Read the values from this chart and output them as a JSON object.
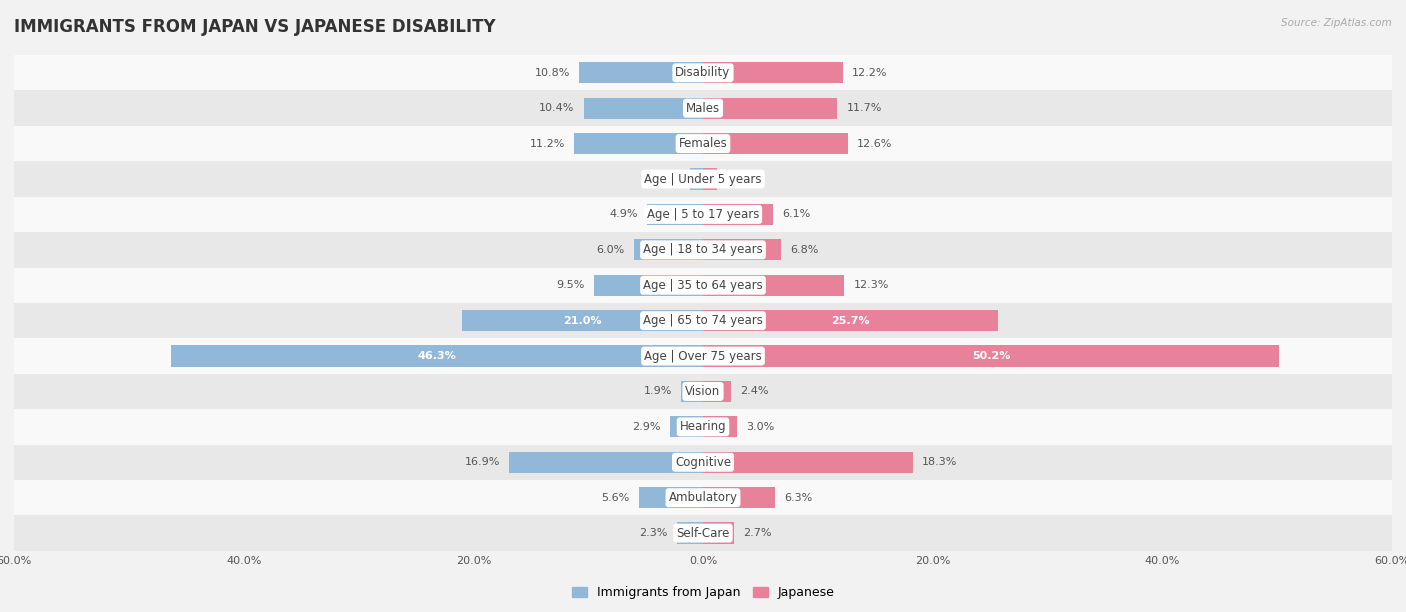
{
  "title": "IMMIGRANTS FROM JAPAN VS JAPANESE DISABILITY",
  "source": "Source: ZipAtlas.com",
  "categories": [
    "Disability",
    "Males",
    "Females",
    "Age | Under 5 years",
    "Age | 5 to 17 years",
    "Age | 18 to 34 years",
    "Age | 35 to 64 years",
    "Age | 65 to 74 years",
    "Age | Over 75 years",
    "Vision",
    "Hearing",
    "Cognitive",
    "Ambulatory",
    "Self-Care"
  ],
  "left_values": [
    10.8,
    10.4,
    11.2,
    1.1,
    4.9,
    6.0,
    9.5,
    21.0,
    46.3,
    1.9,
    2.9,
    16.9,
    5.6,
    2.3
  ],
  "right_values": [
    12.2,
    11.7,
    12.6,
    1.2,
    6.1,
    6.8,
    12.3,
    25.7,
    50.2,
    2.4,
    3.0,
    18.3,
    6.3,
    2.7
  ],
  "left_color": "#92b8d9",
  "right_color": "#e8819a",
  "left_label": "Immigrants from Japan",
  "right_label": "Japanese",
  "axis_max": 60.0,
  "background_color": "#f2f2f2",
  "row_bg_odd": "#f9f9f9",
  "row_bg_even": "#e8e8e8",
  "title_fontsize": 12,
  "label_fontsize": 8.5,
  "value_fontsize": 8,
  "bar_height": 0.6,
  "label_box_color": "white",
  "label_text_color": "#444444",
  "value_text_color": "#555555",
  "white_text_threshold": 20.0
}
